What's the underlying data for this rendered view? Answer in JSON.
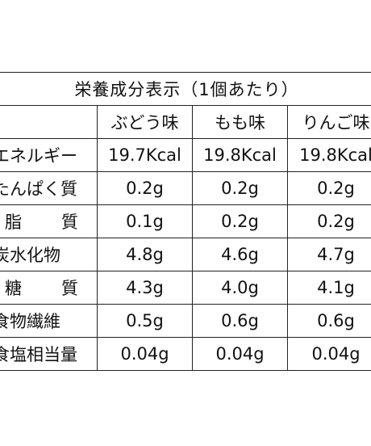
{
  "title": "栄養成分表示（1個あたり）",
  "columns": [
    "",
    "ぶどう味",
    "もも味",
    "りんご味"
  ],
  "rows": [
    {
      "label": "エネルギー",
      "values": [
        "19.7Kcal",
        "19.8Kcal",
        "19.8Kcal"
      ]
    },
    {
      "label": "たんぱく質",
      "values": [
        "0.2g",
        "0.2g",
        "0.2g"
      ]
    },
    {
      "label": "脂　質",
      "values": [
        "0.1g",
        "0.2g",
        "0.2g"
      ]
    },
    {
      "label": "炭水化物",
      "values": [
        "4.8g",
        "4.6g",
        "4.7g"
      ]
    },
    {
      "label": "糖　質",
      "values": [
        "4.3g",
        "4.0g",
        "4.1g"
      ]
    },
    {
      "label": "食物繊維",
      "values": [
        "0.5g",
        "0.6g",
        "0.6g"
      ]
    },
    {
      "label": "食塩相当量",
      "values": [
        "0.04g",
        "0.04g",
        "0.04g"
      ]
    }
  ]
}
